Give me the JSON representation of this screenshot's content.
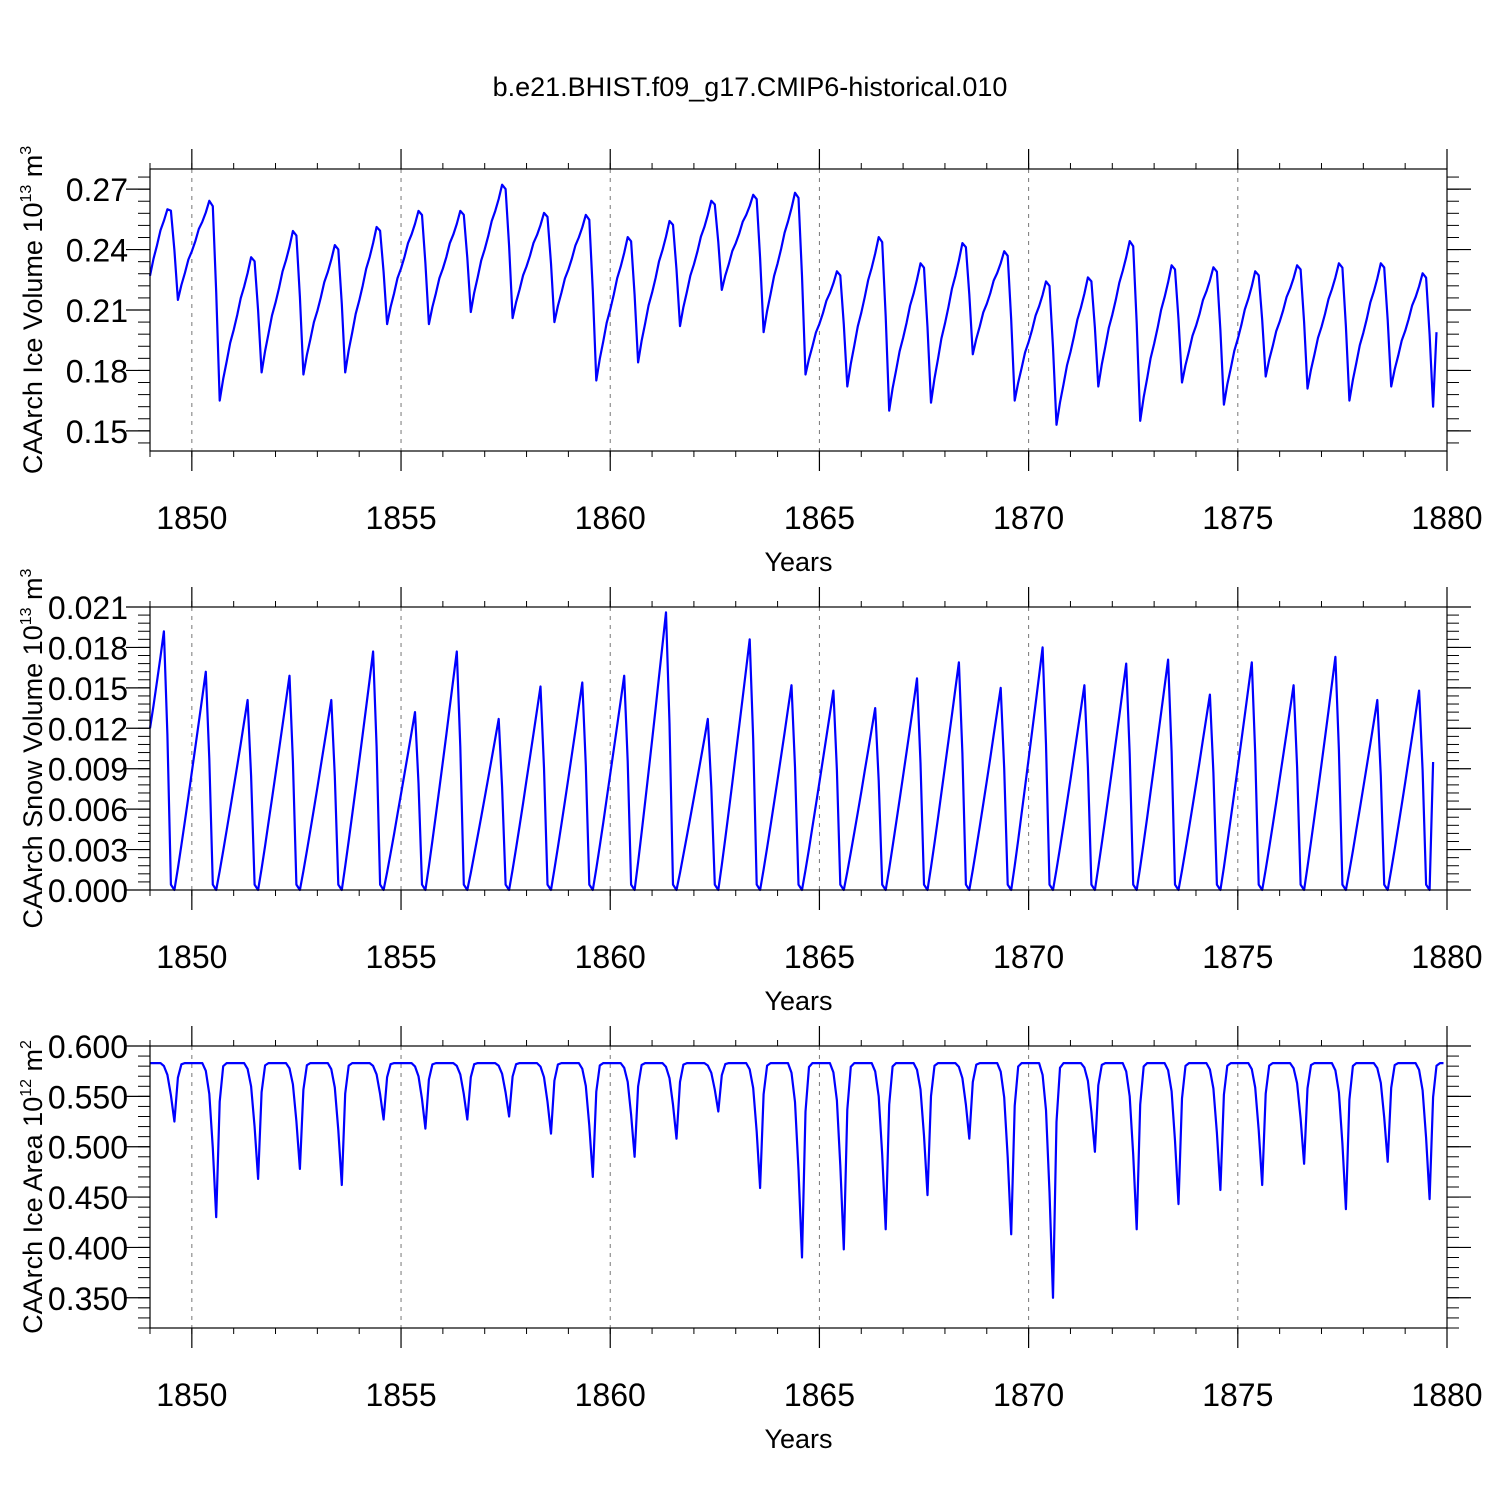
{
  "title": "b.e21.BHIST.f09_g17.CMIP6-historical.010",
  "chart_data": [
    {
      "type": "line",
      "ylabel": "CAArch Ice Volume 10",
      "yunit_exp": "13",
      "yunit": "m",
      "yunit_pow": "3",
      "xlabel": "Years",
      "xlim": [
        1849.0,
        1880.0
      ],
      "ylim": [
        0.14,
        0.28
      ],
      "yticks": [
        "0.15",
        "0.18",
        "0.21",
        "0.24",
        "0.27"
      ],
      "ytick_values": [
        0.15,
        0.18,
        0.21,
        0.24,
        0.27
      ],
      "xticks": [
        "1850",
        "1855",
        "1860",
        "1865",
        "1870",
        "1875",
        "1880"
      ],
      "xtick_values": [
        1850,
        1855,
        1860,
        1865,
        1870,
        1875,
        1880
      ],
      "line_color": "#0000ff",
      "series": [
        {
          "name": "CAArch Ice Volume",
          "x_start": 1849.0,
          "step": 0.0833333,
          "peaks": [
            0.26,
            0.263,
            0.235,
            0.248,
            0.241,
            0.25,
            0.258,
            0.258,
            0.271,
            0.257,
            0.256,
            0.245,
            0.253,
            0.263,
            0.266,
            0.267,
            0.228,
            0.245,
            0.232,
            0.242,
            0.238,
            0.223,
            0.225,
            0.243,
            0.231,
            0.23,
            0.228,
            0.231,
            0.232,
            0.232,
            0.227
          ],
          "troughs": [
            0.215,
            0.165,
            0.179,
            0.178,
            0.179,
            0.203,
            0.203,
            0.209,
            0.206,
            0.204,
            0.175,
            0.184,
            0.202,
            0.22,
            0.199,
            0.178,
            0.172,
            0.16,
            0.164,
            0.188,
            0.165,
            0.153,
            0.172,
            0.155,
            0.174,
            0.163,
            0.177,
            0.171,
            0.165,
            0.172,
            0.162
          ],
          "end_value": 0.199
        }
      ]
    },
    {
      "type": "line",
      "ylabel": "CAArch Snow Volume 10",
      "yunit_exp": "13",
      "yunit": "m",
      "yunit_pow": "3",
      "xlabel": "Years",
      "xlim": [
        1849.0,
        1880.0
      ],
      "ylim": [
        0.0,
        0.021
      ],
      "yticks": [
        "0.000",
        "0.003",
        "0.006",
        "0.009",
        "0.012",
        "0.015",
        "0.018",
        "0.021"
      ],
      "ytick_values": [
        0.0,
        0.003,
        0.006,
        0.009,
        0.012,
        0.015,
        0.018,
        0.021
      ],
      "xticks": [
        "1850",
        "1855",
        "1860",
        "1865",
        "1870",
        "1875",
        "1880"
      ],
      "xtick_values": [
        1850,
        1855,
        1860,
        1865,
        1870,
        1875,
        1880
      ],
      "line_color": "#0000ff",
      "series": [
        {
          "name": "CAArch Snow Volume",
          "x_start": 1849.0,
          "step": 0.0833333,
          "start_value": 0.012,
          "peaks": [
            0.0192,
            0.0162,
            0.0141,
            0.0159,
            0.0141,
            0.0177,
            0.0132,
            0.0177,
            0.0127,
            0.0151,
            0.0154,
            0.0159,
            0.0206,
            0.0127,
            0.0186,
            0.0152,
            0.0148,
            0.0135,
            0.0157,
            0.0169,
            0.015,
            0.018,
            0.0152,
            0.0168,
            0.0171,
            0.0145,
            0.0169,
            0.0152,
            0.0173,
            0.0141,
            0.0148
          ],
          "end_value": 0.0095
        }
      ]
    },
    {
      "type": "line",
      "ylabel": "CAArch Ice Area 10",
      "yunit_exp": "12",
      "yunit": "m",
      "yunit_pow": "2",
      "xlabel": "Years",
      "xlim": [
        1849.0,
        1880.0
      ],
      "ylim": [
        0.32,
        0.6
      ],
      "yticks": [
        "0.350",
        "0.400",
        "0.450",
        "0.500",
        "0.550",
        "0.600"
      ],
      "ytick_values": [
        0.35,
        0.4,
        0.45,
        0.5,
        0.55,
        0.6
      ],
      "xticks": [
        "1850",
        "1855",
        "1860",
        "1865",
        "1870",
        "1875",
        "1880"
      ],
      "xtick_values": [
        1850,
        1855,
        1860,
        1865,
        1870,
        1875,
        1880
      ],
      "line_color": "#0000ff",
      "series": [
        {
          "name": "CAArch Ice Area",
          "x_start": 1849.0,
          "step": 0.0833333,
          "max_value": 0.583,
          "minima": [
            0.525,
            0.43,
            0.468,
            0.478,
            0.462,
            0.527,
            0.518,
            0.527,
            0.53,
            0.513,
            0.47,
            0.49,
            0.508,
            0.535,
            0.459,
            0.39,
            0.398,
            0.418,
            0.452,
            0.508,
            0.413,
            0.35,
            0.495,
            0.418,
            0.443,
            0.457,
            0.462,
            0.483,
            0.438,
            0.485,
            0.448
          ]
        }
      ]
    }
  ]
}
